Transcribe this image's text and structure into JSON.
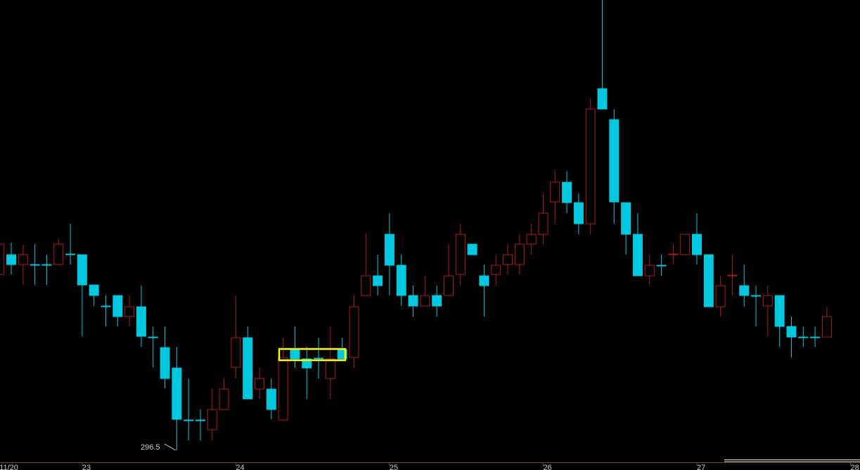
{
  "chart_data": {
    "type": "candlestick",
    "annotation": "296.5",
    "up_color": "#b0191b",
    "down_color": "#00c8e0",
    "ylim": [
      295.0,
      360.5
    ],
    "categories": [
      "11/20",
      null,
      null,
      null,
      null,
      null,
      null,
      "23",
      null,
      null,
      null,
      null,
      null,
      null,
      null,
      null,
      null,
      null,
      null,
      null,
      "24",
      null,
      null,
      null,
      null,
      null,
      null,
      null,
      null,
      null,
      null,
      null,
      null,
      "25",
      null,
      null,
      null,
      null,
      null,
      null,
      null,
      null,
      null,
      null,
      null,
      null,
      "26",
      null,
      null,
      null,
      null,
      null,
      null,
      null,
      null,
      null,
      null,
      null,
      null,
      "27",
      null,
      null,
      null,
      null,
      null,
      null,
      null,
      null,
      null,
      null,
      null,
      null,
      "28"
    ],
    "open": [
      321.5,
      324.3,
      322.9,
      322.9,
      322.9,
      322.9,
      324.4,
      324.3,
      320.0,
      317.0,
      318.5,
      315.5,
      316.9,
      312.6,
      311.1,
      308.2,
      300.8,
      300.8,
      299.4,
      302.3,
      308.3,
      312.5,
      305.2,
      305.2,
      300.8,
      310.8,
      309.5,
      309.6,
      306.7,
      310.8,
      309.7,
      318.5,
      321.3,
      327.2,
      322.8,
      318.5,
      317.0,
      318.5,
      318.5,
      321.5,
      325.8,
      321.3,
      321.5,
      322.9,
      322.9,
      325.8,
      327.2,
      331.8,
      334.6,
      331.7,
      328.7,
      347.9,
      343.5,
      331.7,
      327.2,
      321.3,
      322.8,
      324.3,
      324.3,
      327.2,
      324.3,
      316.9,
      321.3,
      319.9,
      318.5,
      317.0,
      318.5,
      314.1,
      312.6,
      312.6,
      312.6,
      null,
      null
    ],
    "high": [
      325.8,
      326.0,
      325.7,
      325.8,
      324.3,
      326.5,
      328.7,
      324.3,
      320.0,
      318.5,
      318.5,
      318.5,
      319.9,
      314.1,
      314.1,
      311.2,
      306.7,
      302.3,
      305.3,
      306.7,
      318.5,
      314.1,
      308.2,
      306.7,
      312.5,
      314.1,
      311.2,
      312.5,
      314.1,
      312.5,
      318.5,
      327.3,
      324.3,
      330.2,
      324.3,
      319.9,
      321.3,
      319.9,
      325.8,
      328.7,
      325.8,
      322.9,
      324.3,
      325.8,
      327.2,
      328.7,
      333.0,
      336.2,
      336.2,
      333.0,
      346.5,
      360.5,
      345.0,
      331.7,
      330.2,
      324.3,
      324.3,
      325.8,
      327.2,
      330.2,
      324.3,
      321.3,
      324.3,
      322.9,
      319.9,
      319.9,
      318.5,
      315.5,
      314.1,
      314.1,
      316.9,
      null,
      null
    ],
    "low": [
      320.0,
      321.5,
      320.0,
      320.0,
      320.0,
      322.9,
      322.9,
      312.7,
      317.0,
      314.1,
      314.1,
      314.1,
      311.2,
      308.3,
      305.3,
      296.5,
      297.9,
      297.9,
      297.9,
      302.3,
      306.7,
      303.8,
      303.8,
      300.9,
      300.8,
      308.2,
      303.8,
      306.7,
      303.8,
      309.5,
      308.2,
      318.5,
      318.5,
      318.5,
      317.0,
      315.5,
      317.0,
      315.5,
      318.5,
      320.0,
      324.3,
      315.5,
      320.0,
      321.5,
      321.5,
      324.3,
      325.8,
      328.7,
      330.2,
      327.2,
      327.2,
      345.0,
      328.7,
      324.3,
      321.3,
      320.0,
      321.3,
      322.9,
      324.3,
      322.9,
      316.9,
      315.5,
      318.5,
      316.9,
      314.1,
      312.7,
      311.2,
      309.7,
      311.2,
      311.2,
      312.6,
      null,
      null
    ],
    "close": [
      325.8,
      322.9,
      324.3,
      322.8,
      322.8,
      325.8,
      324.3,
      320.0,
      318.5,
      316.9,
      315.5,
      316.9,
      312.7,
      312.5,
      306.7,
      300.9,
      300.7,
      300.7,
      302.3,
      305.2,
      312.5,
      303.8,
      306.7,
      302.3,
      309.7,
      309.5,
      308.2,
      309.5,
      309.5,
      309.5,
      316.9,
      321.3,
      319.9,
      322.8,
      318.5,
      317.0,
      318.5,
      317.0,
      321.3,
      327.2,
      324.3,
      319.9,
      322.8,
      324.3,
      325.8,
      327.2,
      330.2,
      334.6,
      331.7,
      328.7,
      345.0,
      345.0,
      331.8,
      327.2,
      321.3,
      322.8,
      322.7,
      324.4,
      327.2,
      324.3,
      316.9,
      319.9,
      321.4,
      318.5,
      318.4,
      318.5,
      314.1,
      312.6,
      312.5,
      312.5,
      315.5,
      null,
      null
    ]
  }
}
